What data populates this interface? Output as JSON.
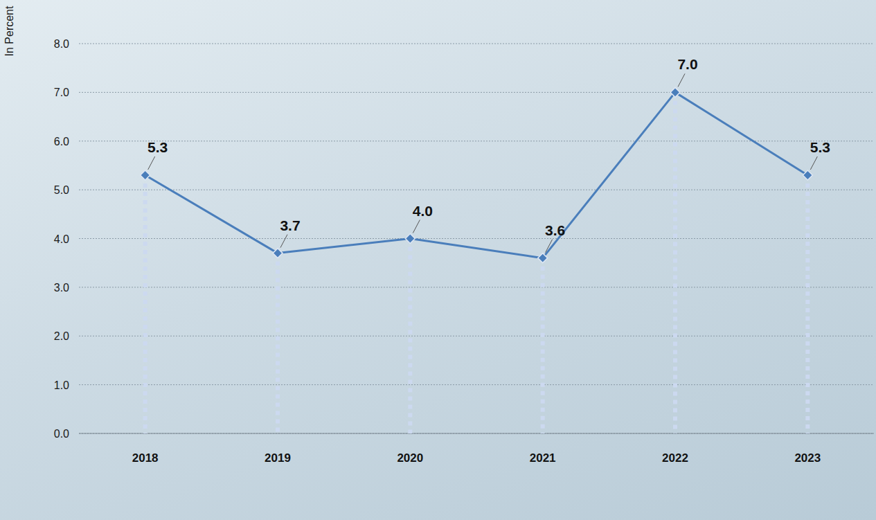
{
  "chart_data": {
    "type": "line",
    "y_label": "In Percent",
    "categories": [
      "2018",
      "2019",
      "2020",
      "2021",
      "2022",
      "2023"
    ],
    "values": [
      5.3,
      3.7,
      4.0,
      3.6,
      7.0,
      5.3
    ],
    "value_labels": [
      "5.3",
      "3.7",
      "4.0",
      "3.6",
      "7.0",
      "5.3"
    ],
    "color": "#4a7ebb",
    "marker": "diamond",
    "data_labels": true,
    "grid": true,
    "ylim": [
      0,
      8
    ],
    "yticks": [
      {
        "value": 0,
        "label": "0.0"
      },
      {
        "value": 1,
        "label": "1.0"
      },
      {
        "value": 2,
        "label": "2.0"
      },
      {
        "value": 3,
        "label": "3.0"
      },
      {
        "value": 4,
        "label": "4.0"
      },
      {
        "value": 5,
        "label": "5.0"
      },
      {
        "value": 6,
        "label": "6.0"
      },
      {
        "value": 7,
        "label": "7.0"
      },
      {
        "value": 8,
        "label": "8.0"
      }
    ]
  }
}
